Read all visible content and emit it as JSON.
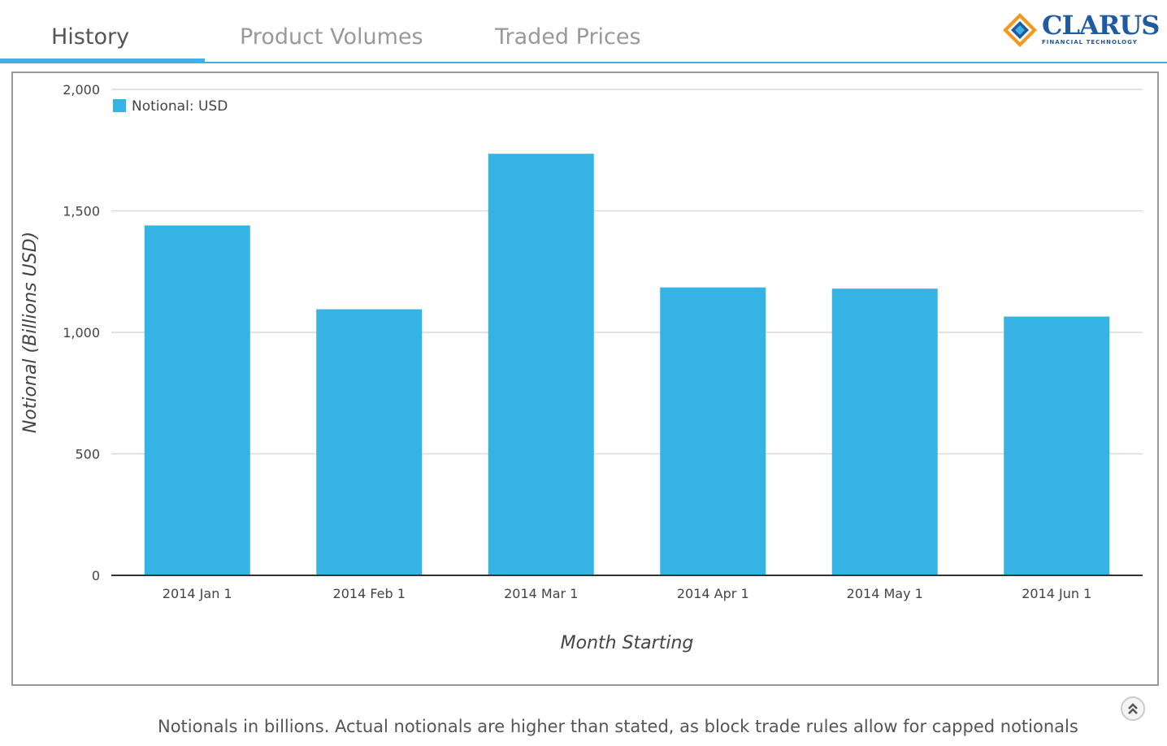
{
  "tabs": [
    {
      "label": "History",
      "active": true
    },
    {
      "label": "Product Volumes",
      "active": false
    },
    {
      "label": "Traded Prices",
      "active": false
    }
  ],
  "logo": {
    "name": "CLARUS",
    "tagline": "FINANCIAL TECHNOLOGY"
  },
  "colors": {
    "accent": "#41b0e0",
    "bar": "#34b3e4",
    "grid": "#d9d9d9"
  },
  "chart_data": {
    "type": "bar",
    "title": "",
    "xlabel": "Month Starting",
    "ylabel": "Notional (Billions USD)",
    "categories": [
      "2014 Jan 1",
      "2014 Feb 1",
      "2014 Mar 1",
      "2014 Apr 1",
      "2014 May 1",
      "2014 Jun 1"
    ],
    "series": [
      {
        "name": "Notional: USD",
        "values": [
          1440,
          1095,
          1735,
          1185,
          1180,
          1065
        ]
      }
    ],
    "ylim": [
      0,
      2000
    ],
    "yticks": [
      0,
      500,
      1000,
      1500,
      2000
    ],
    "ytick_labels": [
      "0",
      "500",
      "1,000",
      "1,500",
      "2,000"
    ],
    "grid": true,
    "legend": "top-left"
  },
  "footer": {
    "note": "Notionals in billions. Actual notionals are higher than stated, as block trade rules allow for capped notionals"
  },
  "scroll_top_icon": "double-chevron-up-icon"
}
